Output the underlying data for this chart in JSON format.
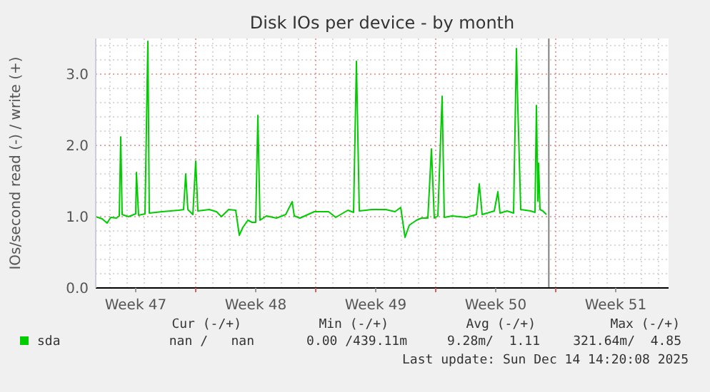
{
  "chart_data": {
    "type": "line",
    "title": "Disk IOs per device - by month",
    "ylabel": "IOs/second read (-) / write (+)",
    "xlim": [
      "2025-11-18T04:00",
      "2025-12-21T14:00"
    ],
    "xticks": [
      {
        "value": "2025-11-20T12:00",
        "label": "Week 47"
      },
      {
        "value": "2025-11-24",
        "label": null
      },
      {
        "value": "2025-11-27T12:00",
        "label": "Week 48"
      },
      {
        "value": "2025-12-01",
        "label": null
      },
      {
        "value": "2025-12-04T12:00",
        "label": "Week 49"
      },
      {
        "value": "2025-12-08",
        "label": null
      },
      {
        "value": "2025-12-11T12:00",
        "label": "Week 50"
      },
      {
        "value": "2025-12-15",
        "label": null
      },
      {
        "value": "2025-12-18T12:00",
        "label": "Week 51"
      }
    ],
    "ylim": [
      0,
      3.5
    ],
    "yticks": [
      {
        "value": 0,
        "label": "0.0"
      },
      {
        "value": 1,
        "label": "1.0"
      },
      {
        "value": 2,
        "label": "2.0"
      },
      {
        "value": 3,
        "label": "3.0"
      }
    ],
    "grid": true,
    "legend": "bottom left",
    "ref_lines": [
      {
        "axis": "x",
        "value": "2025-12-14T14:20",
        "color": "#808080"
      }
    ],
    "series": [
      {
        "name": "sda",
        "color": "#00cc00",
        "x": [
          "2025-11-18T04:00",
          "2025-11-18T13:00",
          "2025-11-18T20:00",
          "2025-11-19T01:00",
          "2025-11-19T09:00",
          "2025-11-19T13:00",
          "2025-11-19T15:00",
          "2025-11-19T17:00",
          "2025-11-20T02:00",
          "2025-11-20T12:00",
          "2025-11-20T13:00",
          "2025-11-20T16:00",
          "2025-11-21T01:00",
          "2025-11-21T05:00",
          "2025-11-21T07:00",
          "2025-11-22T01:00",
          "2025-11-23T00:00",
          "2025-11-23T07:00",
          "2025-11-23T10:00",
          "2025-11-23T13:00",
          "2025-11-23T20:00",
          "2025-11-24T00:00",
          "2025-11-24T03:00",
          "2025-11-24T19:00",
          "2025-11-25T05:00",
          "2025-11-25T12:00",
          "2025-11-25T22:00",
          "2025-11-26T08:00",
          "2025-11-26T10:00",
          "2025-11-26T13:00",
          "2025-11-26T18:00",
          "2025-11-27T01:00",
          "2025-11-27T07:00",
          "2025-11-27T12:00",
          "2025-11-27T15:00",
          "2025-11-27T18:00",
          "2025-11-28T03:00",
          "2025-11-28T17:00",
          "2025-11-29T06:00",
          "2025-11-29T15:00",
          "2025-11-29T18:00",
          "2025-11-30T02:00",
          "2025-11-30T22:00",
          "2025-12-01T18:00",
          "2025-12-02T04:00",
          "2025-12-02T21:00",
          "2025-12-03T05:00",
          "2025-12-03T09:00",
          "2025-12-03T13:00",
          "2025-12-04T06:00",
          "2025-12-05T02:00",
          "2025-12-05T15:00",
          "2025-12-05T23:00",
          "2025-12-06T05:00",
          "2025-12-06T11:00",
          "2025-12-06T21:00",
          "2025-12-07T04:00",
          "2025-12-07T13:00",
          "2025-12-07T18:00",
          "2025-12-07T22:00",
          "2025-12-08T03:00",
          "2025-12-08T09:00",
          "2025-12-08T12:00",
          "2025-12-08T23:00",
          "2025-12-09T19:00",
          "2025-12-10T09:00",
          "2025-12-10T13:00",
          "2025-12-10T17:00",
          "2025-12-11T10:00",
          "2025-12-11T15:00",
          "2025-12-11T18:00",
          "2025-12-12T04:00",
          "2025-12-12T13:00",
          "2025-12-12T17:00",
          "2025-12-12T19:00",
          "2025-12-12T23:00",
          "2025-12-13T13:00",
          "2025-12-13T19:00",
          "2025-12-13T21:00",
          "2025-12-13T23:00",
          "2025-12-14T00:00",
          "2025-12-14T02:00",
          "2025-12-14T06:00",
          "2025-12-14T11:00"
        ],
        "values": [
          1.0,
          0.97,
          0.91,
          0.99,
          0.98,
          1.01,
          2.12,
          1.03,
          1.0,
          1.04,
          1.62,
          1.02,
          1.04,
          3.46,
          1.05,
          1.07,
          1.09,
          1.1,
          1.6,
          1.1,
          1.03,
          1.78,
          1.08,
          1.1,
          1.07,
          1.0,
          1.1,
          1.09,
          0.95,
          0.74,
          0.85,
          0.95,
          0.92,
          0.92,
          2.42,
          0.95,
          1.01,
          0.98,
          1.03,
          1.21,
          1.01,
          0.98,
          1.07,
          1.07,
          0.99,
          1.09,
          1.06,
          3.18,
          1.08,
          1.1,
          1.1,
          1.07,
          1.13,
          0.71,
          0.88,
          0.95,
          0.98,
          0.98,
          1.95,
          0.98,
          1.01,
          2.69,
          0.99,
          1.01,
          0.99,
          1.03,
          1.46,
          1.03,
          1.08,
          1.35,
          1.05,
          1.08,
          1.05,
          3.36,
          2.52,
          1.1,
          1.08,
          1.06,
          2.56,
          1.22,
          1.75,
          1.1,
          1.08,
          1.03
        ]
      }
    ],
    "annotations": [
      "Cur (-/+)",
      "Min (-/+)",
      "Avg (-/+)",
      "Max (-/+)",
      "nan /   nan",
      "0.00 /439.11m",
      "9.28m/  1.11",
      "321.64m/  4.85",
      "Last update: Sun Dec 14 14:20:08 2025"
    ]
  }
}
